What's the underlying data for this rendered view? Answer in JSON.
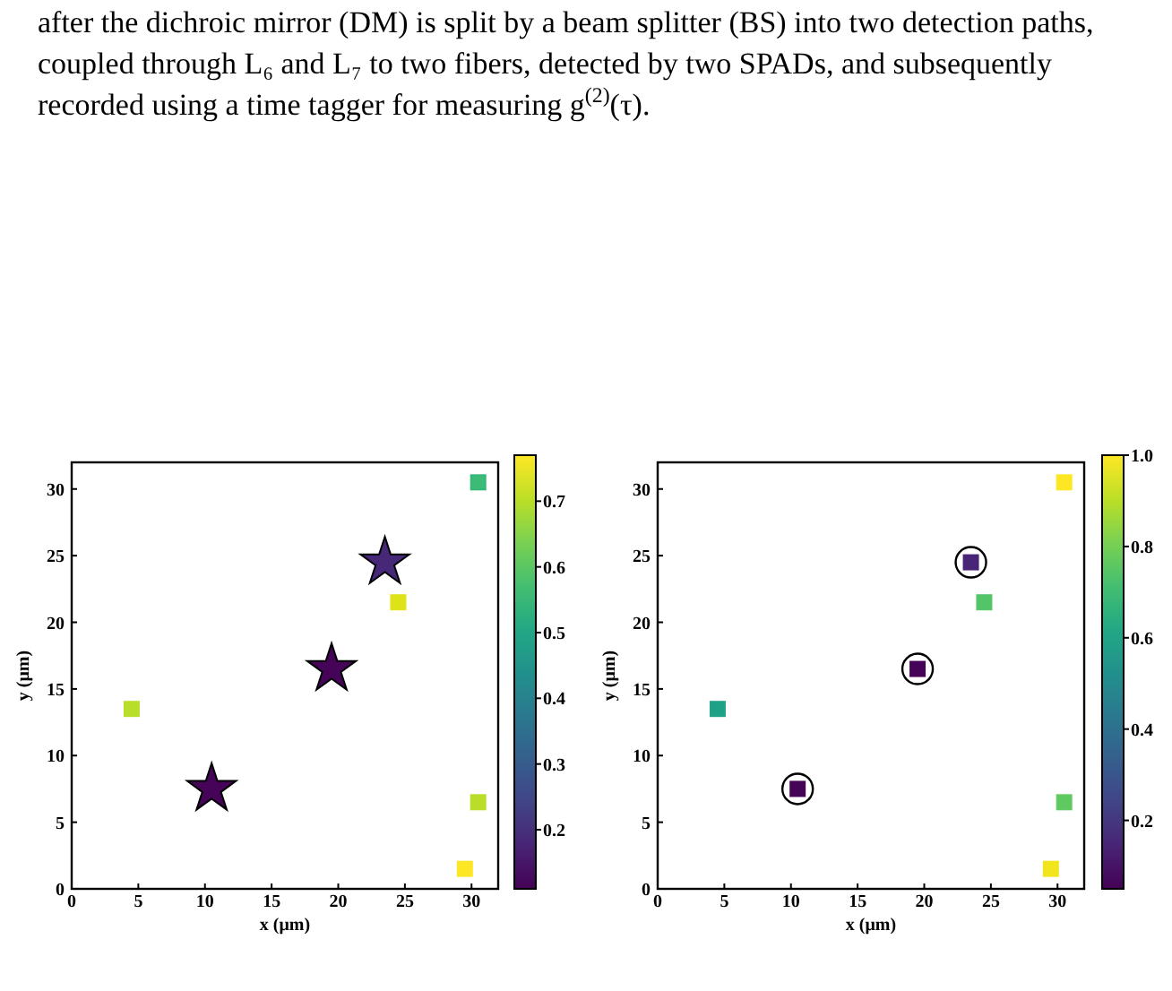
{
  "chart_data": [
    {
      "type": "scatter",
      "annotations": [
        "after the dichroic mirror (DM) is split by a beam splitter (BS) into two detection paths,",
        "coupled through L₆ and L₇ to two fibers, detected by two SPADs, and subsequently",
        "recorded using a time tagger for measuring g$^{(2)}$(τ)."
      ],
      "xlabel": "x (μm)",
      "ylabel": "y (μm)",
      "xlim": [
        0,
        32
      ],
      "ylim": [
        0,
        32
      ],
      "xticks": [
        0,
        5,
        10,
        15,
        20,
        25,
        30
      ],
      "yticks": [
        0,
        5,
        10,
        15,
        20,
        25,
        30
      ],
      "clim": [
        0.11,
        0.77
      ],
      "cticks": [
        0.2,
        0.3,
        0.4,
        0.5,
        0.6,
        0.7
      ],
      "grid": false,
      "series": [
        {
          "marker": "square",
          "x": [
            4.5,
            24.5,
            30.5,
            30.5,
            29.5
          ],
          "values": [
            13.5,
            21.5,
            30.5,
            6.5,
            1.5
          ],
          "cvalues": [
            0.7,
            0.74,
            0.55,
            0.7,
            0.77
          ],
          "colors": [
            "#b8de29",
            "#dde318",
            "#3bbb75",
            "#b8de29",
            "#fde725"
          ]
        },
        {
          "marker": "star",
          "x": [
            10.5,
            19.5,
            23.5
          ],
          "values": [
            7.5,
            16.5,
            24.5
          ],
          "cvalues": [
            0.12,
            0.12,
            0.17
          ],
          "colors": [
            "#450457",
            "#450457",
            "#472878"
          ]
        }
      ]
    },
    {
      "type": "scatter",
      "xlabel": "x (μm)",
      "ylabel": "y (μm)",
      "xlim": [
        0,
        32
      ],
      "ylim": [
        0,
        32
      ],
      "xticks": [
        0,
        5,
        10,
        15,
        20,
        25,
        30
      ],
      "yticks": [
        0,
        5,
        10,
        15,
        20,
        25,
        30
      ],
      "clim": [
        0.05,
        1.0
      ],
      "cticks": [
        0.2,
        0.4,
        0.6,
        0.8,
        {
          "value": 1.0,
          "label": "1.0"
        }
      ],
      "grid": false,
      "series": [
        {
          "marker": "square",
          "x": [
            4.5,
            24.5,
            30.5,
            30.5,
            29.5
          ],
          "values": [
            13.5,
            21.5,
            30.5,
            6.5,
            1.5
          ],
          "cvalues": [
            0.6,
            0.75,
            1.0,
            0.77,
            0.98
          ],
          "colors": [
            "#1fa187",
            "#52c569",
            "#fde725",
            "#5ec962",
            "#f1e51d"
          ]
        },
        {
          "marker": "square",
          "x": [
            10.5,
            19.5,
            23.5
          ],
          "values": [
            7.5,
            16.5,
            24.5
          ],
          "cvalues": [
            0.06,
            0.06,
            0.15
          ],
          "colors": [
            "#450457",
            "#450457",
            "#482576"
          ]
        },
        {
          "marker": "circle",
          "color": "#000000",
          "x": [
            10.5,
            19.5,
            23.5
          ],
          "values": [
            7.5,
            16.5,
            24.5
          ]
        }
      ]
    }
  ]
}
